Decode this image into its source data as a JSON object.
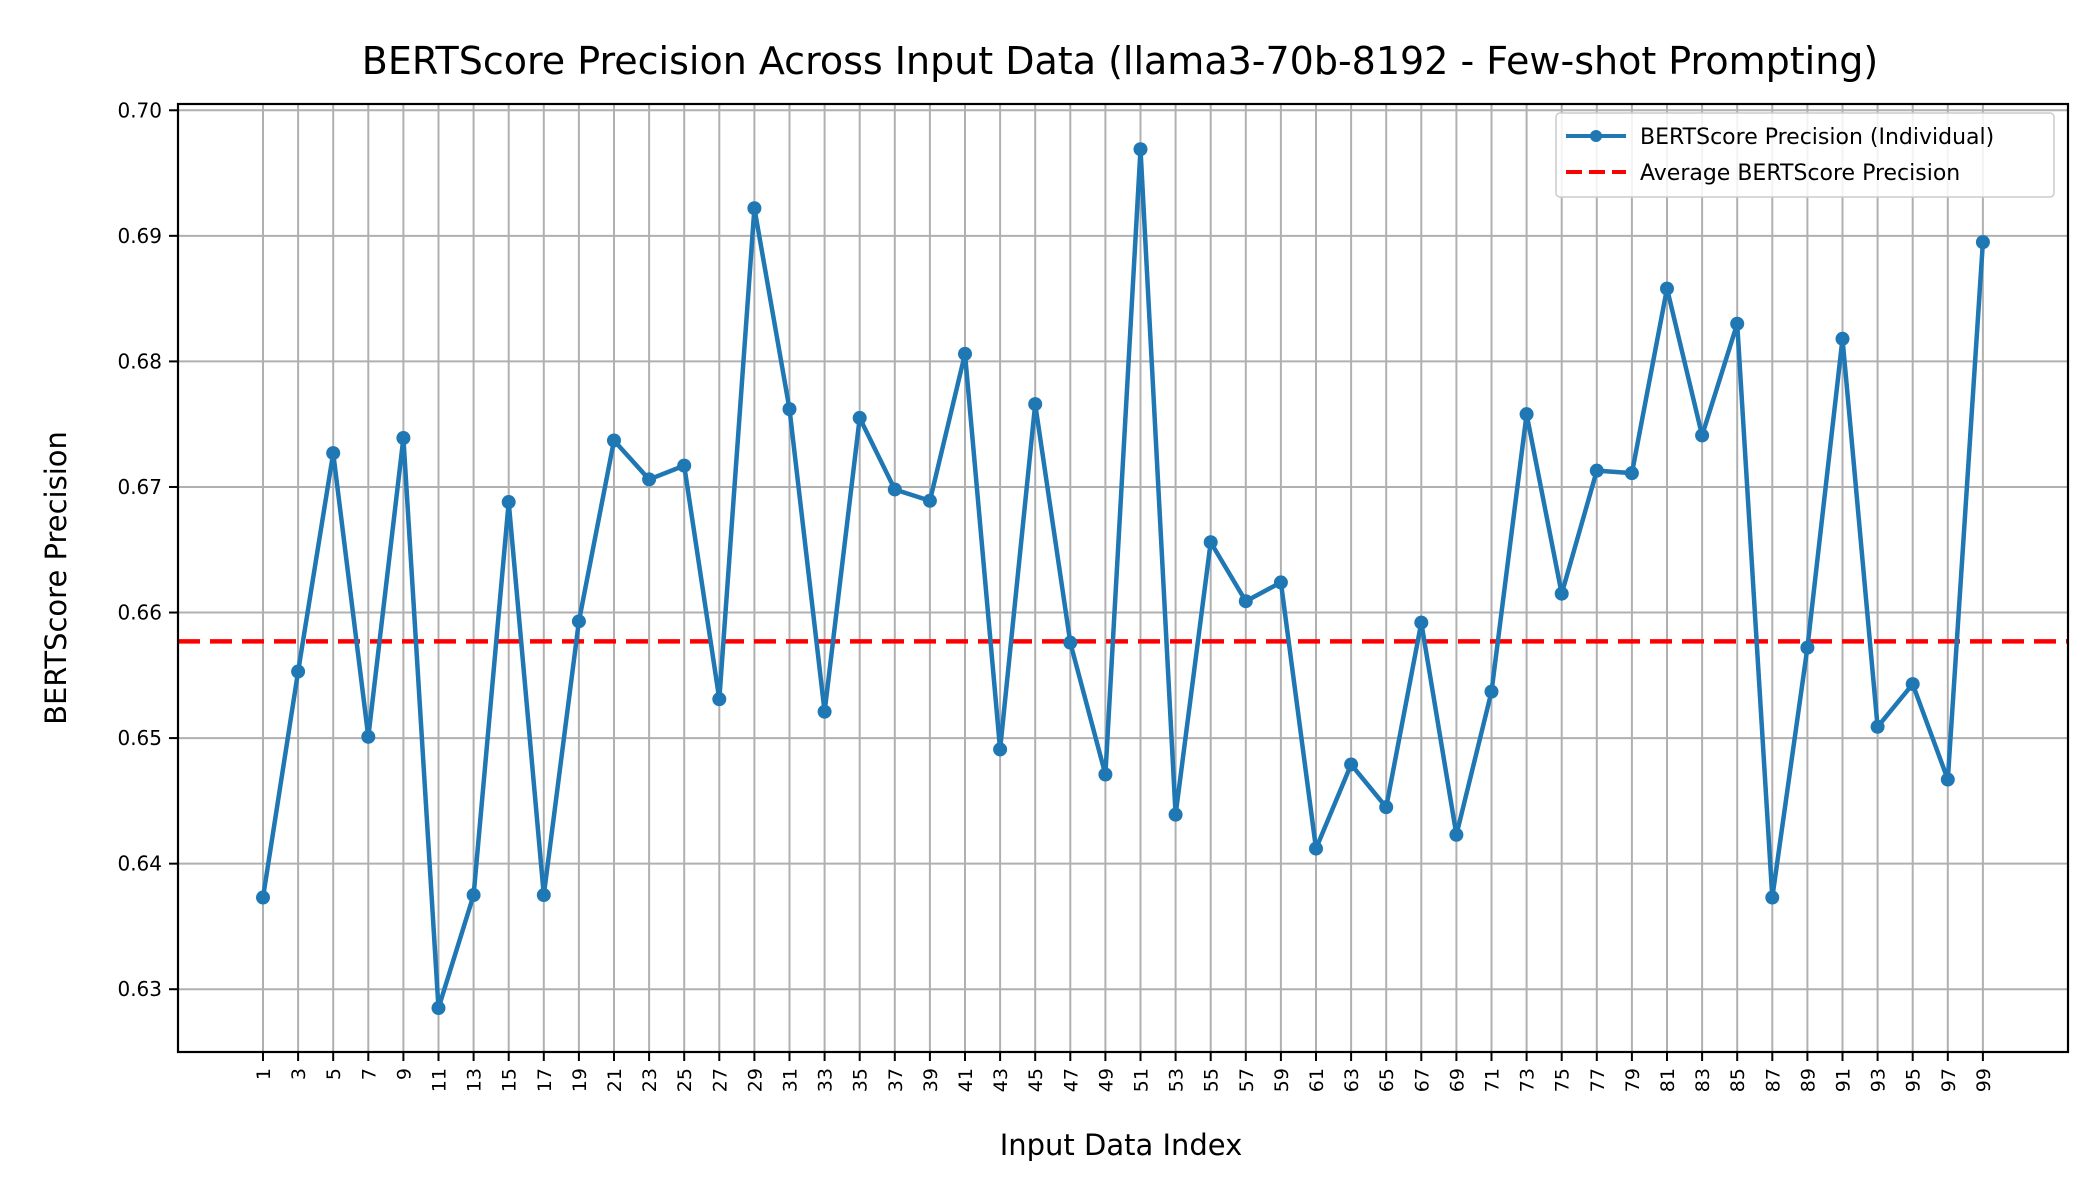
{
  "chart_data": {
    "type": "line",
    "title": "BERTScore Precision Across Input Data (llama3-70b-8192 - Few-shot Prompting)",
    "xlabel": "Input Data Index",
    "ylabel": "BERTScore Precision",
    "x": [
      1,
      3,
      5,
      7,
      9,
      11,
      13,
      15,
      17,
      19,
      21,
      23,
      25,
      27,
      29,
      31,
      33,
      35,
      37,
      39,
      41,
      43,
      45,
      47,
      49,
      51,
      53,
      55,
      57,
      59,
      61,
      63,
      65,
      67,
      69,
      71,
      73,
      75,
      77,
      79,
      81,
      83,
      85,
      87,
      89,
      91,
      93,
      95,
      97,
      99
    ],
    "x_tick_labels": [
      "1",
      "3",
      "5",
      "7",
      "9",
      "11",
      "13",
      "15",
      "17",
      "19",
      "21",
      "23",
      "25",
      "27",
      "29",
      "31",
      "33",
      "35",
      "37",
      "39",
      "41",
      "43",
      "45",
      "47",
      "49",
      "51",
      "53",
      "55",
      "57",
      "59",
      "61",
      "63",
      "65",
      "67",
      "69",
      "71",
      "73",
      "75",
      "77",
      "79",
      "81",
      "83",
      "85",
      "87",
      "89",
      "91",
      "93",
      "95",
      "97",
      "99"
    ],
    "y_tick_labels": [
      "0.63",
      "0.64",
      "0.65",
      "0.66",
      "0.67",
      "0.68",
      "0.69",
      "0.70"
    ],
    "y_ticks": [
      0.63,
      0.64,
      0.65,
      0.66,
      0.67,
      0.68,
      0.69,
      0.7
    ],
    "ylim": [
      0.625,
      0.7005
    ],
    "grid": true,
    "legend_position": "top-right",
    "series": [
      {
        "name": "BERTScore Precision (Individual)",
        "color": "#1f77b4",
        "style": "solid-with-markers",
        "values": [
          0.6373,
          0.6553,
          0.6727,
          0.6501,
          0.6739,
          0.6285,
          0.6375,
          0.6688,
          0.6375,
          0.6593,
          0.6737,
          0.6706,
          0.6717,
          0.6531,
          0.6922,
          0.6762,
          0.6521,
          0.6755,
          0.6698,
          0.6689,
          0.6806,
          0.6491,
          0.6766,
          0.6576,
          0.6471,
          0.6969,
          0.6439,
          0.6656,
          0.6609,
          0.6624,
          0.6412,
          0.6479,
          0.6445,
          0.6592,
          0.6423,
          0.6537,
          0.6758,
          0.6615,
          0.6713,
          0.6711,
          0.6858,
          0.6741,
          0.683,
          0.6373,
          0.6572,
          0.6818,
          0.6509,
          0.6543,
          0.6467,
          0.6895
        ]
      },
      {
        "name": "Average BERTScore Precision",
        "color": "#ff0000",
        "style": "dashed",
        "value": 0.6577
      }
    ]
  }
}
